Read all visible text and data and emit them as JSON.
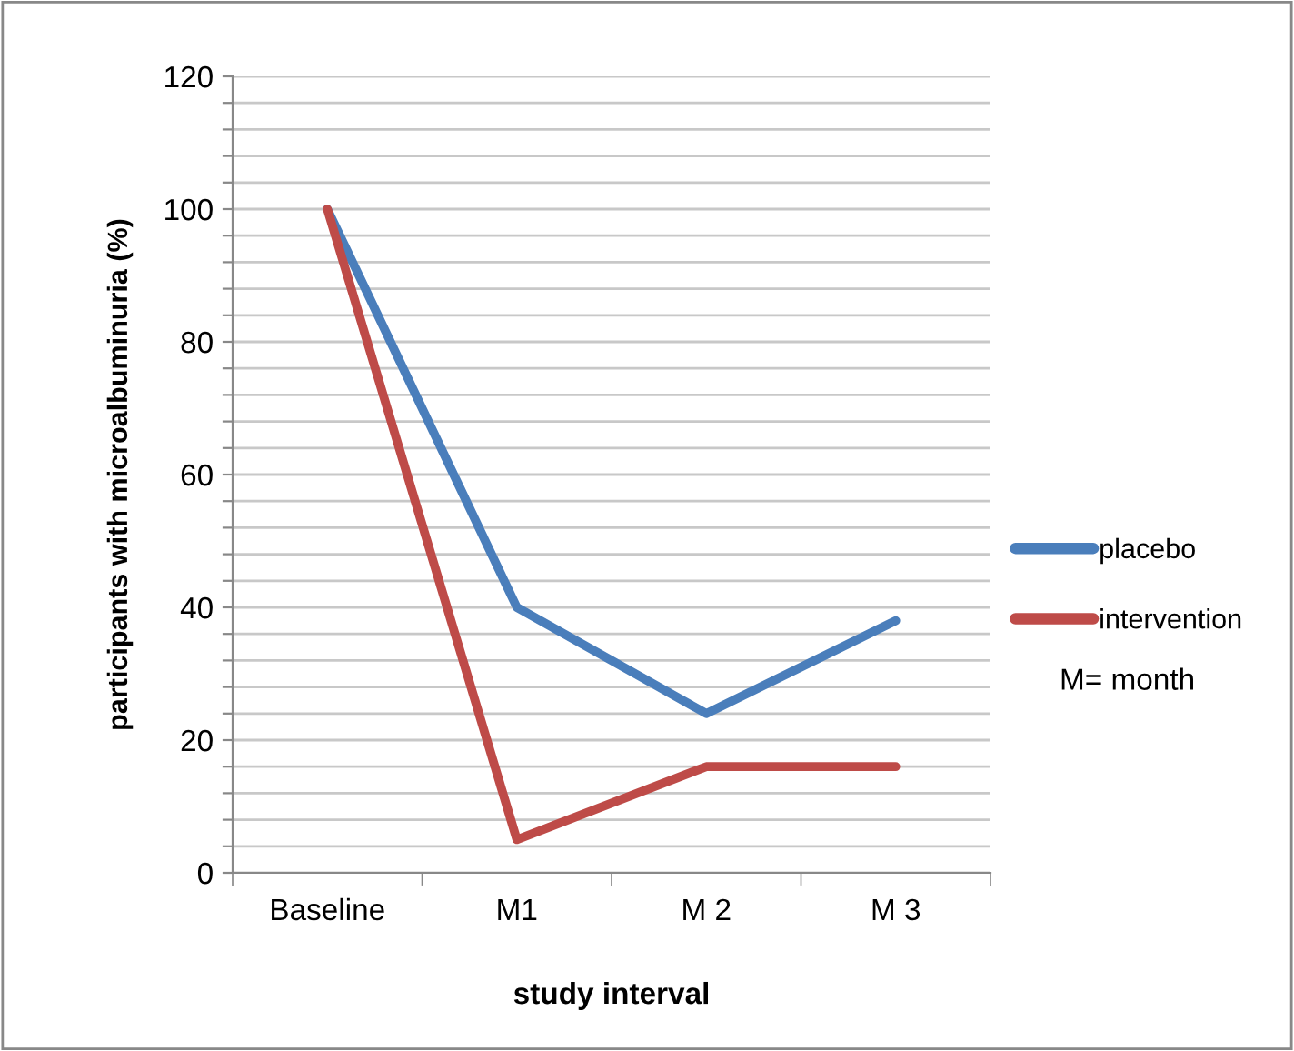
{
  "chart_data": {
    "type": "line",
    "xlabel": "study interval",
    "ylabel": "participants with microalbuminuria (%)",
    "categories": [
      "Baseline",
      "M1",
      "M 2",
      "M 3"
    ],
    "series": [
      {
        "name": "placebo",
        "color": "#4a7ebb",
        "values": [
          100,
          40,
          24,
          38
        ]
      },
      {
        "name": "intervention",
        "color": "#be4b48",
        "values": [
          100,
          5,
          16,
          16
        ]
      }
    ],
    "ylim": [
      0,
      120
    ],
    "yticks": [
      0,
      {
        "value": 4,
        "label": null
      },
      {
        "value": 8,
        "label": null
      },
      {
        "value": 12,
        "label": null
      },
      {
        "value": 16,
        "label": null
      },
      20,
      {
        "value": 24,
        "label": null
      },
      {
        "value": 28,
        "label": null
      },
      {
        "value": 32,
        "label": null
      },
      {
        "value": 36,
        "label": null
      },
      40,
      {
        "value": 44,
        "label": null
      },
      {
        "value": 48,
        "label": null
      },
      {
        "value": 52,
        "label": null
      },
      {
        "value": 56,
        "label": null
      },
      60,
      {
        "value": 64,
        "label": null
      },
      {
        "value": 68,
        "label": null
      },
      {
        "value": 72,
        "label": null
      },
      {
        "value": 76,
        "label": null
      },
      80,
      {
        "value": 84,
        "label": null
      },
      {
        "value": 88,
        "label": null
      },
      {
        "value": 92,
        "label": null
      },
      {
        "value": 96,
        "label": null
      },
      100,
      {
        "value": 104,
        "label": null
      },
      {
        "value": 108,
        "label": null
      },
      {
        "value": 112,
        "label": null
      },
      {
        "value": 116,
        "label": null
      },
      120
    ],
    "grid": "y",
    "legend": "right",
    "marker": "none",
    "line_style": "solid",
    "annotations": [
      "M= month"
    ]
  }
}
